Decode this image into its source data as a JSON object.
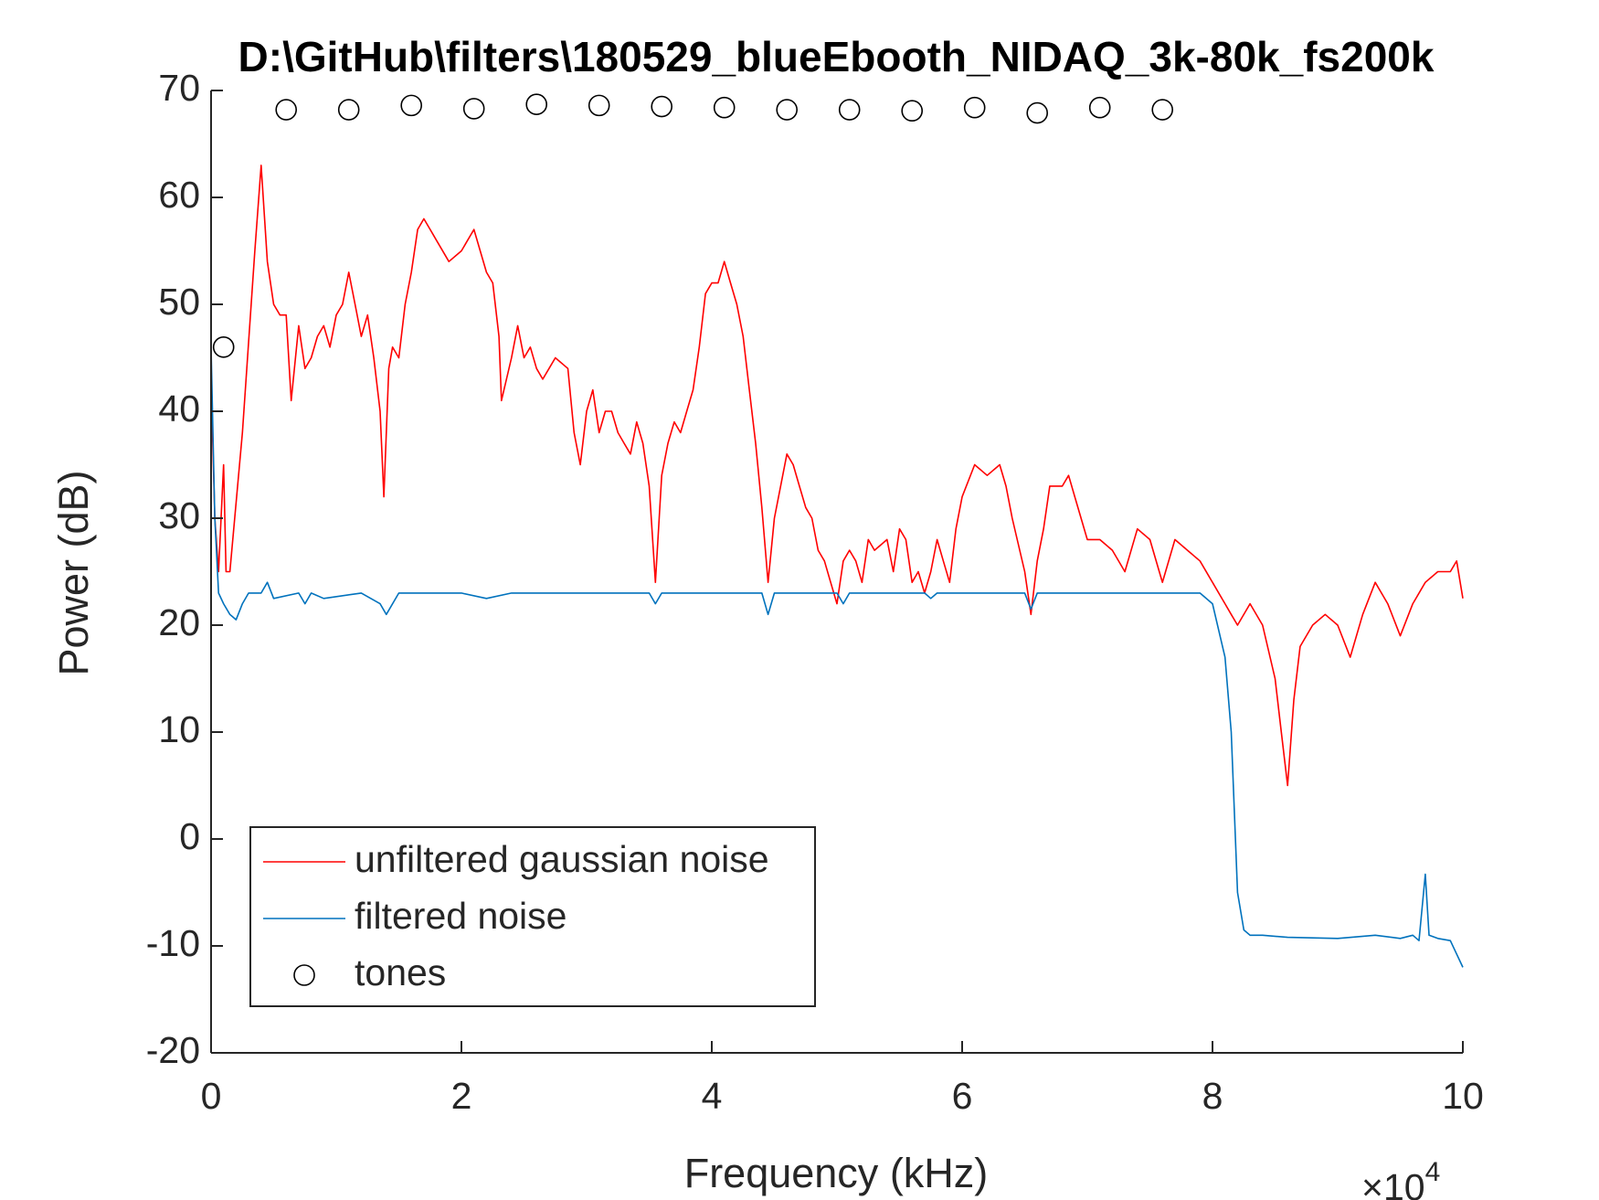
{
  "chart_data": {
    "type": "line",
    "title": "D:\\GitHub\\filters\\180529_blueEbooth_NIDAQ_3k-80k_fs200k",
    "x_label": "Frequency (kHz)",
    "y_label": "Power (dB)",
    "x_multiplier": {
      "base": "×10",
      "exponent": "4"
    },
    "xlim": [
      0,
      100000
    ],
    "ylim": [
      -20,
      70
    ],
    "xticks": [
      {
        "value": 0,
        "label": "0"
      },
      {
        "value": 20000,
        "label": "2"
      },
      {
        "value": 40000,
        "label": "4"
      },
      {
        "value": 60000,
        "label": "6"
      },
      {
        "value": 80000,
        "label": "8"
      },
      {
        "value": 100000,
        "label": "10"
      }
    ],
    "yticks": [
      -20,
      -10,
      0,
      10,
      20,
      30,
      40,
      50,
      60,
      70
    ],
    "legend": "lower-left",
    "series": [
      {
        "name": "unfiltered gaussian noise",
        "color": "#ff0000",
        "type": "line",
        "x": [
          0,
          300,
          600,
          1000,
          1200,
          1500,
          2500,
          3500,
          4000,
          4500,
          5000,
          5500,
          6000,
          6400,
          7000,
          7500,
          8000,
          8500,
          9000,
          9500,
          10000,
          10500,
          11000,
          11500,
          12000,
          12500,
          13000,
          13500,
          13800,
          14200,
          14500,
          15000,
          15500,
          16000,
          16500,
          17000,
          17500,
          18000,
          19000,
          20000,
          21000,
          22000,
          22500,
          23000,
          23200,
          24000,
          24500,
          25000,
          25500,
          26000,
          26500,
          27000,
          27500,
          28500,
          29000,
          29500,
          30000,
          30500,
          31000,
          31500,
          32000,
          32500,
          33000,
          33500,
          34000,
          34500,
          35000,
          35500,
          36000,
          36500,
          37000,
          37500,
          38000,
          38500,
          39000,
          39500,
          40000,
          40500,
          41000,
          41500,
          42000,
          42500,
          43000,
          43500,
          44000,
          44500,
          45000,
          46000,
          46500,
          47000,
          47500,
          48000,
          48500,
          49000,
          49500,
          50000,
          50500,
          51000,
          51500,
          52000,
          52500,
          53000,
          54000,
          54500,
          55000,
          55500,
          56000,
          56500,
          57000,
          57500,
          58000,
          58500,
          59000,
          59500,
          60000,
          61000,
          62000,
          63000,
          63500,
          64000,
          65000,
          65500,
          66000,
          66500,
          67000,
          68000,
          68500,
          69000,
          70000,
          71000,
          72000,
          73000,
          74000,
          75000,
          76000,
          77000,
          78000,
          79000,
          80000,
          81000,
          81500,
          82000,
          83000,
          84000,
          85000,
          85500,
          86000,
          86500,
          87000,
          88000,
          89000,
          90000,
          91000,
          92000,
          93000,
          94000,
          95000,
          96000,
          97000,
          98000,
          99000,
          99500,
          100000
        ],
        "values": [
          43,
          30,
          25,
          35,
          25,
          25,
          38,
          55,
          63,
          54,
          50,
          49,
          49,
          41,
          48,
          44,
          45,
          47,
          48,
          46,
          49,
          50,
          53,
          50,
          47,
          49,
          45,
          40,
          32,
          44,
          46,
          45,
          50,
          53,
          57,
          58,
          57,
          56,
          54,
          55,
          57,
          53,
          52,
          47,
          41,
          45,
          48,
          45,
          46,
          44,
          43,
          44,
          45,
          44,
          38,
          35,
          40,
          42,
          38,
          40,
          40,
          38,
          37,
          36,
          39,
          37,
          33,
          24,
          34,
          37,
          39,
          38,
          40,
          42,
          46,
          51,
          52,
          52,
          54,
          52,
          50,
          47,
          42,
          37,
          31,
          24,
          30,
          36,
          35,
          33,
          31,
          30,
          27,
          26,
          24,
          22,
          26,
          27,
          26,
          24,
          28,
          27,
          28,
          25,
          29,
          28,
          24,
          25,
          23,
          25,
          28,
          26,
          24,
          29,
          32,
          35,
          34,
          35,
          33,
          30,
          25,
          21,
          26,
          29,
          33,
          33,
          34,
          32,
          28,
          28,
          27,
          25,
          29,
          28,
          24,
          28,
          27,
          26,
          24,
          22,
          21,
          20,
          22,
          20,
          15,
          10,
          5,
          13,
          18,
          20,
          21,
          20,
          17,
          21,
          24,
          22,
          19,
          22,
          24,
          25,
          25,
          26,
          22.5
        ]
      },
      {
        "name": "filtered noise",
        "color": "#0072bd",
        "type": "line",
        "x": [
          0,
          300,
          600,
          1000,
          1500,
          2000,
          2500,
          3000,
          4000,
          4500,
          5000,
          7000,
          7500,
          8000,
          9000,
          12000,
          13500,
          14000,
          15000,
          20000,
          22000,
          24000,
          30000,
          35000,
          35500,
          36000,
          44000,
          44500,
          45000,
          50000,
          50500,
          51000,
          57000,
          57500,
          58000,
          65000,
          65500,
          66000,
          70000,
          75000,
          79000,
          80000,
          81000,
          81500,
          82000,
          82500,
          83000,
          84000,
          86000,
          90000,
          93000,
          95000,
          96000,
          96500,
          97000,
          97300,
          98000,
          99000,
          100000
        ],
        "values": [
          46,
          30,
          23,
          22,
          21,
          20.5,
          22,
          23,
          23,
          24,
          22.5,
          23,
          22,
          23,
          22.5,
          23,
          22,
          21,
          23,
          23,
          22.5,
          23,
          23,
          23,
          22,
          23,
          23,
          21,
          23,
          23,
          22,
          23,
          23,
          22.5,
          23,
          23,
          21.5,
          23,
          23,
          23,
          23,
          22,
          17,
          10,
          -5,
          -8.5,
          -9,
          -9,
          -9.2,
          -9.3,
          -9,
          -9.3,
          -9,
          -9.5,
          -3.3,
          -9,
          -9.3,
          -9.5,
          -12
        ]
      },
      {
        "name": "tones",
        "color": "#000000",
        "type": "scatter",
        "x": [
          1000,
          6000,
          11000,
          16000,
          21000,
          26000,
          31000,
          36000,
          41000,
          46000,
          51000,
          56000,
          61000,
          66000,
          71000,
          76000
        ],
        "values": [
          46,
          68.2,
          68.2,
          68.6,
          68.3,
          68.7,
          68.6,
          68.5,
          68.4,
          68.2,
          68.2,
          68.1,
          68.4,
          67.9,
          68.4,
          68.2
        ]
      }
    ]
  }
}
